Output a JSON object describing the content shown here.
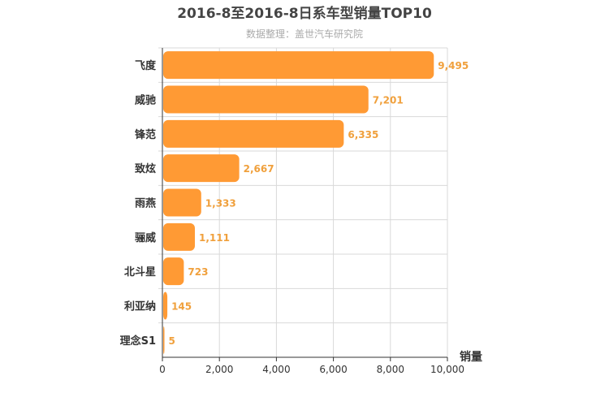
{
  "chart_data": {
    "type": "bar",
    "orientation": "horizontal",
    "title": "2016-8至2016-8日系车型销量TOP10",
    "subtitle": "数据整理：盖世汽车研究院",
    "categories": [
      "飞度",
      "威驰",
      "锋范",
      "致炫",
      "雨燕",
      "骊威",
      "北斗星",
      "利亚纳",
      "理念S1"
    ],
    "values": [
      9495,
      7201,
      6335,
      2667,
      1333,
      1111,
      723,
      145,
      5
    ],
    "value_labels": [
      "9,495",
      "7,201",
      "6,335",
      "2,667",
      "1,333",
      "1,111",
      "723",
      "145",
      "5"
    ],
    "value_axis_title": "销量",
    "value_axis": {
      "range": [
        0,
        10000
      ],
      "ticks": [
        0,
        2000,
        4000,
        6000,
        8000,
        10000
      ],
      "tick_labels": [
        "0",
        "2,000",
        "4,000",
        "6,000",
        "8,000",
        "10,000"
      ]
    },
    "grid": true,
    "bar_color": "#ff9a34"
  }
}
